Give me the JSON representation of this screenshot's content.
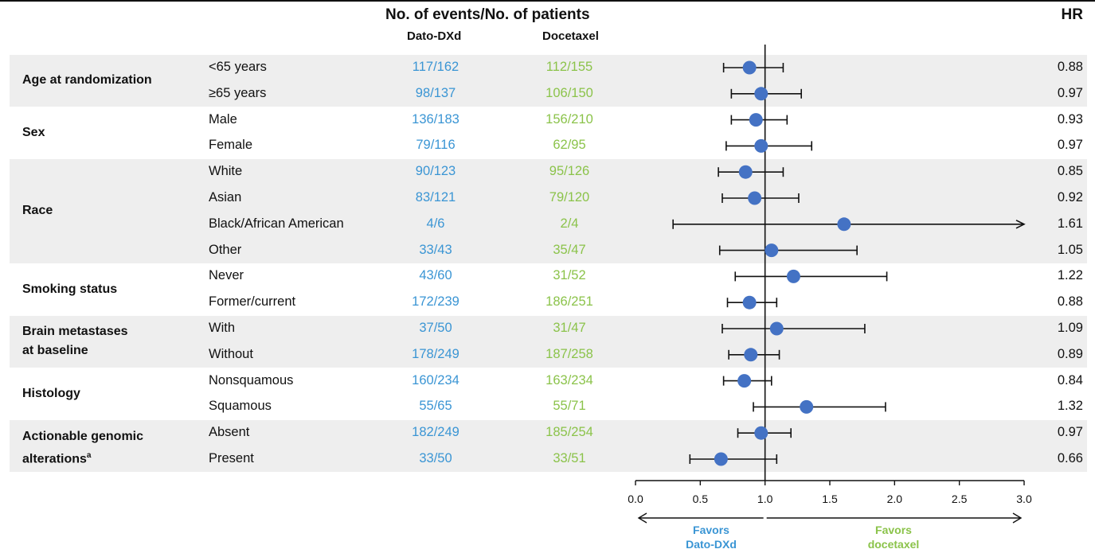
{
  "colors": {
    "dato": "#3a95d4",
    "docetaxel": "#8bc34a",
    "marker": "#4472c4",
    "band": "#eeeeee",
    "text": "#111111"
  },
  "header": {
    "events_title": "No. of events/No. of patients",
    "arm_a": "Dato-DXd",
    "arm_b": "Docetaxel",
    "hr_title": "HR"
  },
  "chart_data": {
    "type": "scatter",
    "subtype": "forest-plot",
    "xlim": [
      0.0,
      3.0
    ],
    "xticks": [
      "0.0",
      "0.5",
      "1.0",
      "1.5",
      "2.0",
      "2.5",
      "3.0"
    ],
    "reference_line": 1.0,
    "favors_left_line1": "Favors",
    "favors_left_line2": "Dato-DXd",
    "favors_right_line1": "Favors",
    "favors_right_line2": "docetaxel",
    "groups": [
      {
        "label": "Age at randomization",
        "label_lines": [
          "Age at randomization"
        ],
        "rows": [
          {
            "subgroup": "<65 years",
            "dato": "117/162",
            "docetaxel": "112/155",
            "hr": 0.88,
            "hr_label": "0.88",
            "ci": [
              0.68,
              1.14
            ]
          },
          {
            "subgroup": "≥65 years",
            "dato": "98/137",
            "docetaxel": "106/150",
            "hr": 0.97,
            "hr_label": "0.97",
            "ci": [
              0.74,
              1.28
            ]
          }
        ]
      },
      {
        "label": "Sex",
        "label_lines": [
          "Sex"
        ],
        "rows": [
          {
            "subgroup": "Male",
            "dato": "136/183",
            "docetaxel": "156/210",
            "hr": 0.93,
            "hr_label": "0.93",
            "ci": [
              0.74,
              1.17
            ]
          },
          {
            "subgroup": "Female",
            "dato": "79/116",
            "docetaxel": "62/95",
            "hr": 0.97,
            "hr_label": "0.97",
            "ci": [
              0.7,
              1.36
            ]
          }
        ]
      },
      {
        "label": "Race",
        "label_lines": [
          "Race"
        ],
        "rows": [
          {
            "subgroup": "White",
            "dato": "90/123",
            "docetaxel": "95/126",
            "hr": 0.85,
            "hr_label": "0.85",
            "ci": [
              0.64,
              1.14
            ]
          },
          {
            "subgroup": "Asian",
            "dato": "83/121",
            "docetaxel": "79/120",
            "hr": 0.92,
            "hr_label": "0.92",
            "ci": [
              0.67,
              1.26
            ]
          },
          {
            "subgroup": "Black/African American",
            "dato": "4/6",
            "docetaxel": "2/4",
            "hr": 1.61,
            "hr_label": "1.61",
            "ci": [
              0.29,
              3.0
            ],
            "arrow_right": true
          },
          {
            "subgroup": "Other",
            "dato": "33/43",
            "docetaxel": "35/47",
            "hr": 1.05,
            "hr_label": "1.05",
            "ci": [
              0.65,
              1.71
            ]
          }
        ]
      },
      {
        "label": "Smoking status",
        "label_lines": [
          "Smoking status"
        ],
        "rows": [
          {
            "subgroup": "Never",
            "dato": "43/60",
            "docetaxel": "31/52",
            "hr": 1.22,
            "hr_label": "1.22",
            "ci": [
              0.77,
              1.94
            ]
          },
          {
            "subgroup": "Former/current",
            "dato": "172/239",
            "docetaxel": "186/251",
            "hr": 0.88,
            "hr_label": "0.88",
            "ci": [
              0.71,
              1.09
            ]
          }
        ]
      },
      {
        "label": "Brain metastases at baseline",
        "label_lines": [
          "Brain metastases",
          "at baseline"
        ],
        "rows": [
          {
            "subgroup": "With",
            "dato": "37/50",
            "docetaxel": "31/47",
            "hr": 1.09,
            "hr_label": "1.09",
            "ci": [
              0.67,
              1.77
            ]
          },
          {
            "subgroup": "Without",
            "dato": "178/249",
            "docetaxel": "187/258",
            "hr": 0.89,
            "hr_label": "0.89",
            "ci": [
              0.72,
              1.11
            ]
          }
        ]
      },
      {
        "label": "Histology",
        "label_lines": [
          "Histology"
        ],
        "rows": [
          {
            "subgroup": "Nonsquamous",
            "dato": "160/234",
            "docetaxel": "163/234",
            "hr": 0.84,
            "hr_label": "0.84",
            "ci": [
              0.68,
              1.05
            ]
          },
          {
            "subgroup": "Squamous",
            "dato": "55/65",
            "docetaxel": "55/71",
            "hr": 1.32,
            "hr_label": "1.32",
            "ci": [
              0.91,
              1.93
            ]
          }
        ]
      },
      {
        "label": "Actionable genomic alterationsa",
        "label_lines": [
          "Actionable genomic",
          "alterations"
        ],
        "label_sup": "a",
        "rows": [
          {
            "subgroup": "Absent",
            "dato": "182/249",
            "docetaxel": "185/254",
            "hr": 0.97,
            "hr_label": "0.97",
            "ci": [
              0.79,
              1.2
            ]
          },
          {
            "subgroup": "Present",
            "dato": "33/50",
            "docetaxel": "33/51",
            "hr": 0.66,
            "hr_label": "0.66",
            "ci": [
              0.42,
              1.09
            ]
          }
        ]
      }
    ]
  }
}
